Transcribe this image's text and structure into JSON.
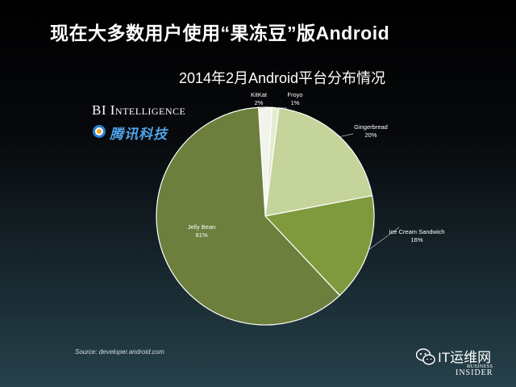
{
  "slide_title": "现在大多数用户使用“果冻豆”版Android",
  "brand": {
    "bi_name": "BI Intelligence",
    "partner": "腾讯科技"
  },
  "source": "Source: developer.android.com",
  "watermark": {
    "wechat_account": "IT运维网",
    "logo_line1": "BUSINESS",
    "logo_line2": "INSIDER"
  },
  "colors": {
    "background_top": "#000000",
    "background_bottom": "#27414b",
    "jelly_bean": "#6d7f3d",
    "ice_cream_sandwich": "#7f9a3d",
    "gingerbread": "#c4d49a",
    "froyo": "#e3ebd0",
    "kitkat": "#f2f4ec",
    "partner_blue": "#4fa3e8"
  },
  "chart_data": {
    "type": "pie",
    "title": "2014年2月Android平台分布情况",
    "slices": [
      {
        "label": "KitKat",
        "value": 2,
        "value_label": "2%",
        "color": "#f2f4ec"
      },
      {
        "label": "Froyo",
        "value": 1,
        "value_label": "1%",
        "color": "#e3ebd0"
      },
      {
        "label": "Gingerbread",
        "value": 20,
        "value_label": "20%",
        "color": "#c4d49a"
      },
      {
        "label": "Ice Cream Sandwich",
        "value": 16,
        "value_label": "16%",
        "color": "#7f9a3d"
      },
      {
        "label": "Jelly Bean",
        "value": 61,
        "value_label": "61%",
        "color": "#6d7f3d"
      }
    ],
    "legend": "none",
    "data_labels": "outside with leader lines"
  }
}
